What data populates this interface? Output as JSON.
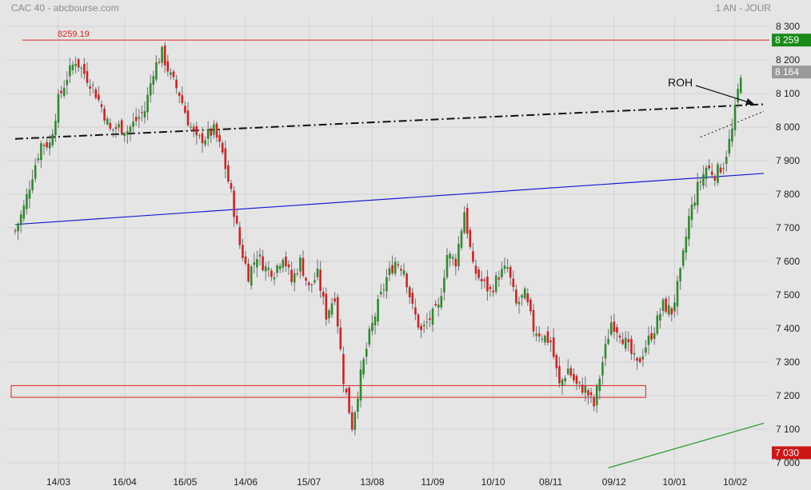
{
  "header": {
    "title": "CAC 40 - abcbourse.com",
    "period": "1 AN - JOUR"
  },
  "colors": {
    "background": "#e5e5e5",
    "grid": "#d2d2d2",
    "up": "#2e8b2e",
    "down": "#d42020",
    "wick": "#6e6e6e",
    "resistance": "#e02020",
    "channel": "#1a1ad6",
    "support": "#1e9a1e",
    "dashdot": "#111111",
    "price_badge": "#9a9a9a",
    "resistance_badge": "#1a8a1a",
    "low_badge": "#cc1515"
  },
  "chart_data": {
    "type": "candlestick",
    "title": "CAC 40",
    "ylim": [
      7000,
      8320
    ],
    "y_ticks": [
      "8 300",
      "8 200",
      "8 100",
      "8 000",
      "7 900",
      "7 800",
      "7 700",
      "7 600",
      "7 500",
      "7 400",
      "7 300",
      "7 200",
      "7 100",
      "7 000"
    ],
    "y_tick_values": [
      8300,
      8200,
      8100,
      8000,
      7900,
      7800,
      7700,
      7600,
      7500,
      7400,
      7300,
      7200,
      7100,
      7000
    ],
    "x_ticks": [
      "14/03",
      "16/04",
      "16/05",
      "14/06",
      "15/07",
      "13/08",
      "11/09",
      "10/10",
      "08/11",
      "09/12",
      "10/01",
      "10/02"
    ],
    "x_tick_index": [
      15,
      38,
      59,
      80,
      102,
      124,
      145,
      166,
      186,
      208,
      229,
      250
    ],
    "last_price_label": "8 164",
    "last_price": 8164,
    "resistance_label": "8 259",
    "resistance": 8259.19,
    "resistance_annotation": "8259.19",
    "low_label": "7 030",
    "low": 7030,
    "annotation": "ROH",
    "grid": true,
    "series_guide": [
      [
        0,
        7690
      ],
      [
        3,
        7760
      ],
      [
        6,
        7860
      ],
      [
        9,
        7950
      ],
      [
        12,
        7950
      ],
      [
        15,
        8080
      ],
      [
        18,
        8150
      ],
      [
        21,
        8200
      ],
      [
        24,
        8160
      ],
      [
        27,
        8120
      ],
      [
        30,
        8060
      ],
      [
        33,
        7990
      ],
      [
        36,
        8000
      ],
      [
        39,
        7990
      ],
      [
        42,
        8020
      ],
      [
        45,
        8050
      ],
      [
        48,
        8170
      ],
      [
        51,
        8220
      ],
      [
        54,
        8150
      ],
      [
        57,
        8100
      ],
      [
        60,
        8020
      ],
      [
        63,
        7960
      ],
      [
        66,
        7970
      ],
      [
        69,
        7990
      ],
      [
        72,
        7920
      ],
      [
        75,
        7800
      ],
      [
        78,
        7650
      ],
      [
        81,
        7560
      ],
      [
        84,
        7620
      ],
      [
        87,
        7580
      ],
      [
        90,
        7570
      ],
      [
        93,
        7620
      ],
      [
        96,
        7540
      ],
      [
        99,
        7600
      ],
      [
        102,
        7520
      ],
      [
        105,
        7560
      ],
      [
        108,
        7440
      ],
      [
        111,
        7500
      ],
      [
        114,
        7250
      ],
      [
        117,
        7110
      ],
      [
        120,
        7260
      ],
      [
        123,
        7380
      ],
      [
        126,
        7470
      ],
      [
        129,
        7550
      ],
      [
        132,
        7600
      ],
      [
        135,
        7580
      ],
      [
        138,
        7460
      ],
      [
        141,
        7390
      ],
      [
        144,
        7430
      ],
      [
        147,
        7460
      ],
      [
        150,
        7620
      ],
      [
        153,
        7600
      ],
      [
        156,
        7750
      ],
      [
        159,
        7580
      ],
      [
        162,
        7540
      ],
      [
        165,
        7510
      ],
      [
        168,
        7560
      ],
      [
        171,
        7580
      ],
      [
        174,
        7470
      ],
      [
        177,
        7500
      ],
      [
        180,
        7400
      ],
      [
        183,
        7380
      ],
      [
        186,
        7360
      ],
      [
        189,
        7230
      ],
      [
        192,
        7280
      ],
      [
        195,
        7230
      ],
      [
        198,
        7220
      ],
      [
        201,
        7170
      ],
      [
        204,
        7300
      ],
      [
        207,
        7420
      ],
      [
        210,
        7390
      ],
      [
        213,
        7340
      ],
      [
        216,
        7290
      ],
      [
        219,
        7350
      ],
      [
        222,
        7400
      ],
      [
        225,
        7470
      ],
      [
        228,
        7450
      ],
      [
        231,
        7560
      ],
      [
        234,
        7730
      ],
      [
        237,
        7820
      ],
      [
        240,
        7880
      ],
      [
        243,
        7860
      ],
      [
        246,
        7890
      ],
      [
        249,
        7990
      ],
      [
        252,
        8164
      ]
    ],
    "lines": [
      {
        "kind": "resistance-horizontal",
        "value": 8259.19,
        "from": 8,
        "to": 260
      },
      {
        "kind": "dash-dot-trend",
        "from": [
          0,
          7965
        ],
        "to": [
          260,
          8068
        ]
      },
      {
        "kind": "channel-blue",
        "from": [
          0,
          7710
        ],
        "to": [
          260,
          7862
        ]
      },
      {
        "kind": "support-green",
        "from": [
          206,
          6985
        ],
        "to": [
          260,
          7118
        ]
      },
      {
        "kind": "dotted-wedge",
        "from": [
          238,
          7970
        ],
        "to": [
          260,
          8047
        ]
      },
      {
        "kind": "support-zone-box",
        "from_index": 0,
        "to_index": 219,
        "low": 7195,
        "high": 7230
      }
    ]
  }
}
